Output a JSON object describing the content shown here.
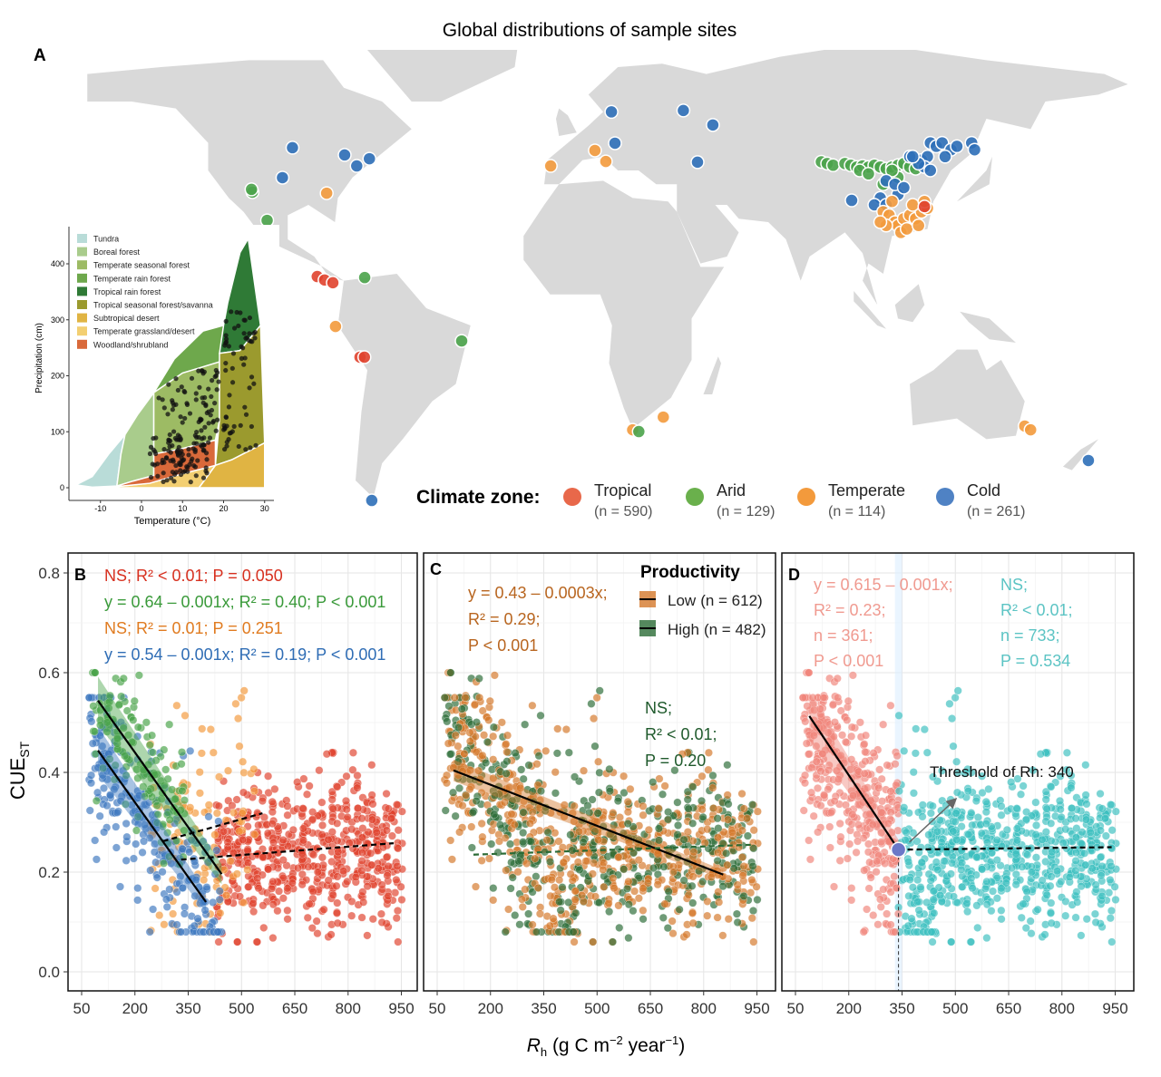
{
  "title": "Global distributions of sample sites",
  "panel_labels": {
    "A": "A",
    "B": "B",
    "C": "C",
    "D": "D"
  },
  "climate_legend": {
    "title": "Climate zone:",
    "zones": [
      {
        "name": "Tropical",
        "n": "(n = 590)",
        "color": "#e8684a"
      },
      {
        "name": "Arid",
        "n": "(n = 129)",
        "color": "#6ab04c"
      },
      {
        "name": "Temperate",
        "n": "(n = 114)",
        "color": "#f39a3c"
      },
      {
        "name": "Cold",
        "n": "(n = 261)",
        "color": "#4f82c4"
      }
    ]
  },
  "colors": {
    "land": "#d9d9d9",
    "tropical": "#e0432d",
    "arid": "#4aa34a",
    "temperate": "#f39a3c",
    "cold": "#3f79c0",
    "low": "#d4782a",
    "high": "#2b6b36",
    "below_threshold": "#f0857a",
    "above_threshold": "#3dbfc0"
  },
  "chart_data": [
    {
      "type": "map",
      "title": "Global distributions of sample sites",
      "sites_lon_lat_zone": [
        [
          -95.4,
          46.6,
          3
        ],
        [
          -98.8,
          37.9,
          3
        ],
        [
          -77.7,
          44.5,
          3
        ],
        [
          -73.6,
          41.3,
          3
        ],
        [
          -69.3,
          43.4,
          3
        ],
        [
          -109,
          33.7,
          1
        ],
        [
          -109.3,
          34.5,
          1
        ],
        [
          -104,
          25.5,
          1
        ],
        [
          -83.8,
          33.4,
          2
        ],
        [
          -87,
          9.2,
          0
        ],
        [
          -84.5,
          8.2,
          0
        ],
        [
          -81.7,
          7.4,
          0
        ],
        [
          -70.9,
          8.9,
          1
        ],
        [
          -80.8,
          -5.3,
          2
        ],
        [
          -72.5,
          -14.2,
          0
        ],
        [
          -71,
          -14.2,
          0
        ],
        [
          -38,
          -9.5,
          1
        ],
        [
          -68.5,
          -55.8,
          3
        ],
        [
          -7.8,
          41.3,
          2
        ],
        [
          7.2,
          45.8,
          2
        ],
        [
          10.9,
          42.6,
          2
        ],
        [
          12.8,
          57,
          3
        ],
        [
          37.2,
          57.4,
          3
        ],
        [
          47.2,
          53.2,
          3
        ],
        [
          14,
          47.9,
          3
        ],
        [
          42,
          42.4,
          3
        ],
        [
          20,
          -35.3,
          2
        ],
        [
          22.1,
          -35.8,
          1
        ],
        [
          30.4,
          -31.6,
          2
        ],
        [
          153,
          -34.2,
          2
        ],
        [
          155,
          -35.3,
          2
        ],
        [
          174.6,
          -44.2,
          3
        ],
        [
          94.3,
          31.3,
          3
        ],
        [
          84,
          42.5,
          1
        ],
        [
          86,
          42,
          1
        ],
        [
          88,
          41.5,
          1
        ],
        [
          92,
          42,
          1
        ],
        [
          94,
          41.5,
          1
        ],
        [
          96,
          41,
          1
        ],
        [
          98,
          41.3,
          1
        ],
        [
          100,
          41,
          1
        ],
        [
          102,
          41.5,
          1
        ],
        [
          104,
          41,
          1
        ],
        [
          106,
          40.5,
          1
        ],
        [
          108,
          41,
          1
        ],
        [
          110,
          41.5,
          1
        ],
        [
          112,
          42,
          1
        ],
        [
          114,
          41,
          1
        ],
        [
          110,
          38,
          1
        ],
        [
          105,
          36,
          1
        ],
        [
          97,
          40,
          1
        ],
        [
          100,
          39,
          1
        ],
        [
          116,
          40.5,
          1
        ],
        [
          108,
          40,
          1
        ],
        [
          118,
          43,
          3
        ],
        [
          120,
          44,
          3
        ],
        [
          121,
          48,
          3
        ],
        [
          123,
          47,
          3
        ],
        [
          125,
          48,
          3
        ],
        [
          128,
          46,
          3
        ],
        [
          130,
          47,
          3
        ],
        [
          126,
          44,
          3
        ],
        [
          119,
          41,
          3
        ],
        [
          117,
          42,
          3
        ],
        [
          114,
          44,
          3
        ],
        [
          110,
          33,
          3
        ],
        [
          106,
          37,
          3
        ],
        [
          109,
          36,
          3
        ],
        [
          104,
          32,
          3
        ],
        [
          102,
          30,
          3
        ],
        [
          106,
          30,
          3
        ],
        [
          112,
          35,
          3
        ],
        [
          115,
          44,
          3
        ],
        [
          121,
          40,
          3
        ],
        [
          135,
          48,
          3
        ],
        [
          136,
          46,
          3
        ],
        [
          105,
          28,
          2
        ],
        [
          107,
          27,
          2
        ],
        [
          109,
          25,
          2
        ],
        [
          110,
          24,
          2
        ],
        [
          112,
          26,
          2
        ],
        [
          114,
          27,
          2
        ],
        [
          116,
          26,
          2
        ],
        [
          118,
          28,
          2
        ],
        [
          120,
          29,
          2
        ],
        [
          111,
          22,
          2
        ],
        [
          113,
          23,
          2
        ],
        [
          106,
          24,
          2
        ],
        [
          115,
          30,
          2
        ],
        [
          108,
          31,
          2
        ],
        [
          119,
          31,
          2
        ],
        [
          104,
          25,
          2
        ],
        [
          117,
          24,
          2
        ],
        [
          119,
          29.5,
          0
        ]
      ]
    },
    {
      "type": "area",
      "xlabel": "Temperature (°C)",
      "ylabel": "Precipitation (cm)",
      "x_ticks": [
        "-10",
        "0",
        "10",
        "20",
        "30"
      ],
      "y_ticks": [
        "0",
        "100",
        "200",
        "300",
        "400"
      ],
      "xlim": [
        -17,
        32
      ],
      "ylim": [
        -5,
        460
      ],
      "biomes": [
        {
          "name": "Tundra",
          "color": "#b9dcd8"
        },
        {
          "name": "Boreal forest",
          "color": "#a9cc8c"
        },
        {
          "name": "Temperate seasonal forest",
          "color": "#9dbb64"
        },
        {
          "name": "Temperate rain forest",
          "color": "#6ea84c"
        },
        {
          "name": "Tropical rain forest",
          "color": "#2f7a36"
        },
        {
          "name": "Tropical seasonal forest/savanna",
          "color": "#9b9a2e"
        },
        {
          "name": "Subtropical desert",
          "color": "#e0b443"
        },
        {
          "name": "Temperate grassland/desert",
          "color": "#f3cf72"
        },
        {
          "name": "Woodland/shrubland",
          "color": "#d9693a"
        }
      ]
    },
    {
      "type": "scatter",
      "panel": "B",
      "ylabel": "CUE_ST",
      "xlabel": "R_h (g C m⁻² year⁻¹)",
      "xlim": [
        12,
        990
      ],
      "ylim": [
        -0.04,
        0.84
      ],
      "x_ticks": [
        "50",
        "200",
        "350",
        "500",
        "650",
        "800",
        "950"
      ],
      "y_ticks": [
        "0.0",
        "0.2",
        "0.4",
        "0.6",
        "0.8"
      ],
      "series": [
        {
          "name": "Tropical",
          "n": 590,
          "fit": {
            "x": [
              330,
              928
            ],
            "y": [
              0.225,
              0.258
            ],
            "significant": false
          },
          "annotation": "NS; R² < 0.01; P = 0.050"
        },
        {
          "name": "Arid",
          "n": 129,
          "fit": {
            "x": [
              96,
              444
            ],
            "y": [
              0.544,
              0.196
            ],
            "significant": true
          },
          "annotation": "y = 0.64 – 0.001x; R² = 0.40; P < 0.001"
        },
        {
          "name": "Temperate",
          "n": 114,
          "fit": {
            "x": [
              279,
              559
            ],
            "y": [
              0.262,
              0.318
            ],
            "significant": false
          },
          "annotation": "NS; R² = 0.01; P = 0.251"
        },
        {
          "name": "Cold",
          "n": 261,
          "fit": {
            "x": [
              96,
              400
            ],
            "y": [
              0.444,
              0.14
            ],
            "significant": true
          },
          "annotation": "y = 0.54 – 0.001x; R² = 0.19; P < 0.001"
        }
      ]
    },
    {
      "type": "scatter",
      "panel": "C",
      "legend_title": "Productivity",
      "xlim": [
        12,
        990
      ],
      "ylim": [
        -0.04,
        0.84
      ],
      "x_ticks": [
        "50",
        "200",
        "350",
        "500",
        "650",
        "800",
        "950"
      ],
      "series": [
        {
          "name": "Low",
          "n_label": "(n = 612)",
          "fit": {
            "x": [
              96,
              855
            ],
            "y": [
              0.404,
              0.195
            ],
            "significant": true
          },
          "annotation": [
            "y = 0.43 – 0.0003x;",
            "R² = 0.29;",
            "P < 0.001"
          ]
        },
        {
          "name": "High",
          "n_label": "(n = 482)",
          "fit": {
            "x": [
              152,
              940
            ],
            "y": [
              0.235,
              0.255
            ],
            "significant": false
          },
          "annotation": [
            "NS;",
            "R² < 0.01;",
            "P = 0.20"
          ]
        }
      ]
    },
    {
      "type": "scatter",
      "panel": "D",
      "xlim": [
        12,
        990
      ],
      "ylim": [
        -0.04,
        0.84
      ],
      "x_ticks": [
        "50",
        "200",
        "350",
        "500",
        "650",
        "800",
        "950"
      ],
      "threshold": 340,
      "threshold_label": "Threshold of Rh: 340",
      "series": [
        {
          "name": "Rh < 340",
          "fit": {
            "x": [
              89,
              340
            ],
            "y": [
              0.513,
              0.245
            ],
            "significant": true
          },
          "annotation": [
            "y = 0.615 – 0.001x;",
            "R² = 0.23;",
            "n = 361;",
            "P < 0.001"
          ]
        },
        {
          "name": "Rh > 340",
          "fit": {
            "x": [
              340,
              940
            ],
            "y": [
              0.245,
              0.25
            ],
            "significant": false
          },
          "annotation": [
            "NS;",
            "R² < 0.01;",
            "n = 733;",
            "P = 0.534"
          ]
        }
      ]
    }
  ]
}
